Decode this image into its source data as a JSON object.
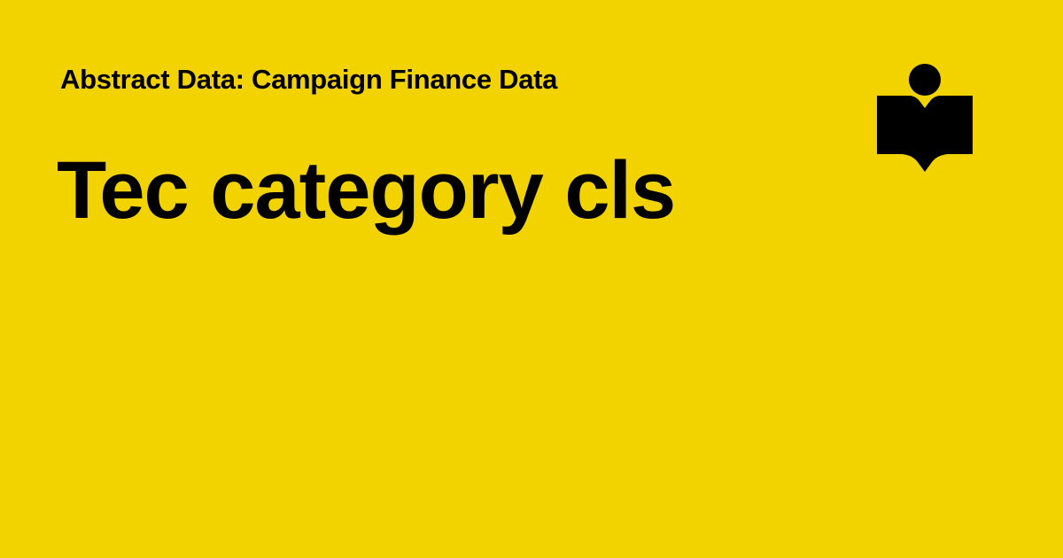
{
  "header": {
    "subtitle": "Abstract Data: Campaign Finance Data",
    "title": "Tec category cls"
  },
  "logo": {
    "icon": "person-reading-book-icon"
  },
  "colors": {
    "background": "#F2D300",
    "text": "#000000"
  }
}
